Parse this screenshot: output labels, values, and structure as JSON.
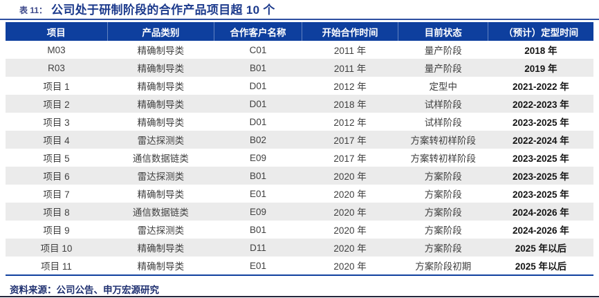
{
  "caption": {
    "label": "表 11：",
    "title": "公司处于研制阶段的合作产品项目超 10 个"
  },
  "table": {
    "columns": [
      "项目",
      "产品类别",
      "合作客户名称",
      "开始合作时间",
      "目前状态",
      "（预计）定型时间"
    ],
    "rows": [
      [
        "M03",
        "精确制导类",
        "C01",
        "2011 年",
        "量产阶段",
        "2018 年"
      ],
      [
        "R03",
        "精确制导类",
        "B01",
        "2011 年",
        "量产阶段",
        "2019 年"
      ],
      [
        "项目 1",
        "精确制导类",
        "D01",
        "2012 年",
        "定型中",
        "2021-2022 年"
      ],
      [
        "项目 2",
        "精确制导类",
        "D01",
        "2018 年",
        "试样阶段",
        "2022-2023 年"
      ],
      [
        "项目 3",
        "精确制导类",
        "D01",
        "2012 年",
        "试样阶段",
        "2023-2025 年"
      ],
      [
        "项目 4",
        "雷达探测类",
        "B02",
        "2017 年",
        "方案转初样阶段",
        "2022-2024 年"
      ],
      [
        "项目 5",
        "通信数据链类",
        "E09",
        "2017 年",
        "方案转初样阶段",
        "2023-2025 年"
      ],
      [
        "项目 6",
        "雷达探测类",
        "B01",
        "2020 年",
        "方案阶段",
        "2023-2025 年"
      ],
      [
        "项目 7",
        "精确制导类",
        "E01",
        "2020 年",
        "方案阶段",
        "2023-2025 年"
      ],
      [
        "项目 8",
        "通信数据链类",
        "E09",
        "2020 年",
        "方案阶段",
        "2024-2026 年"
      ],
      [
        "项目 9",
        "雷达探测类",
        "B01",
        "2020 年",
        "方案阶段",
        "2024-2026 年"
      ],
      [
        "项目 10",
        "精确制导类",
        "D11",
        "2020 年",
        "方案阶段",
        "2025 年以后"
      ],
      [
        "项目 11",
        "精确制导类",
        "E01",
        "2020 年",
        "方案阶段初期",
        "2025 年以后"
      ]
    ],
    "column_widths_pct": [
      17.3,
      18.2,
      14.9,
      16.4,
      15.3,
      17.9
    ]
  },
  "footer": {
    "source": "资料来源：公司公告、申万宏源研究"
  },
  "colors": {
    "header_bg": "#0E3F9E",
    "alt_row_bg": "#EBEBEB",
    "title_text": "#1C3A8C",
    "footer_text": "#1F3070",
    "table_bottom_border": "#0E3F9E",
    "caption_underline": "#2E4FA0",
    "bottom_rule": "#23233A",
    "body_text": "#3F3F3F",
    "final_column_text": "#141414"
  }
}
